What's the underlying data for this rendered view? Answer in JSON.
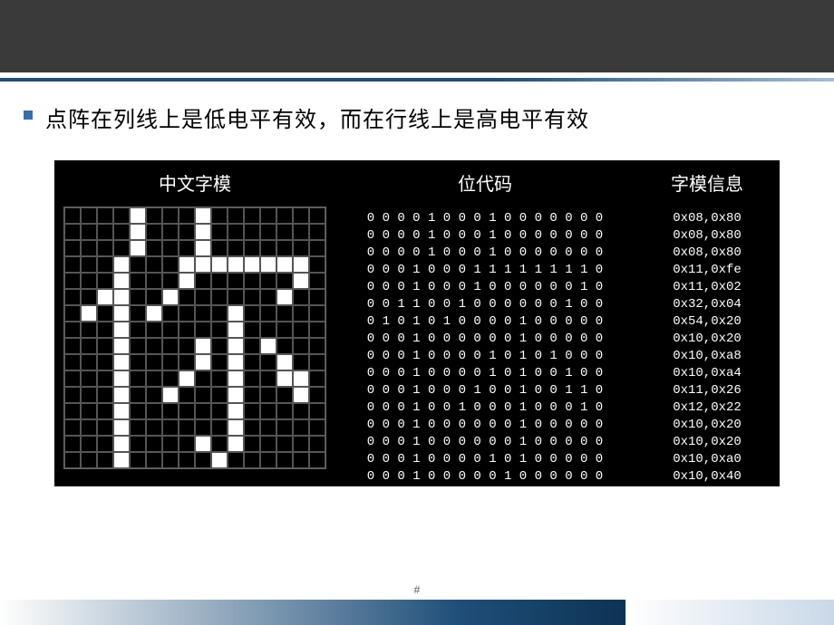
{
  "slide": {
    "bullet_text": "点阵在列线上是低电平有效，而在行线上是高电平有效",
    "page_marker": "#"
  },
  "figure": {
    "title_left": "中文字模",
    "title_mid": "位代码",
    "title_right": "字模信息",
    "grid_size": 16,
    "cell_on_color": "#ffffff",
    "cell_off_color": "#000000",
    "cell_border_color": "#555555",
    "background_color": "#000000",
    "hex_rows": [
      [
        "0x08",
        "0x80"
      ],
      [
        "0x08",
        "0x80"
      ],
      [
        "0x08",
        "0x80"
      ],
      [
        "0x11",
        "0xfe"
      ],
      [
        "0x11",
        "0x02"
      ],
      [
        "0x32",
        "0x04"
      ],
      [
        "0x54",
        "0x20"
      ],
      [
        "0x10",
        "0x20"
      ],
      [
        "0x10",
        "0xa8"
      ],
      [
        "0x10",
        "0xa4"
      ],
      [
        "0x11",
        "0x26"
      ],
      [
        "0x12",
        "0x22"
      ],
      [
        "0x10",
        "0x20"
      ],
      [
        "0x10",
        "0x20"
      ],
      [
        "0x10",
        "0xa0"
      ],
      [
        "0x10",
        "0x40"
      ]
    ]
  }
}
